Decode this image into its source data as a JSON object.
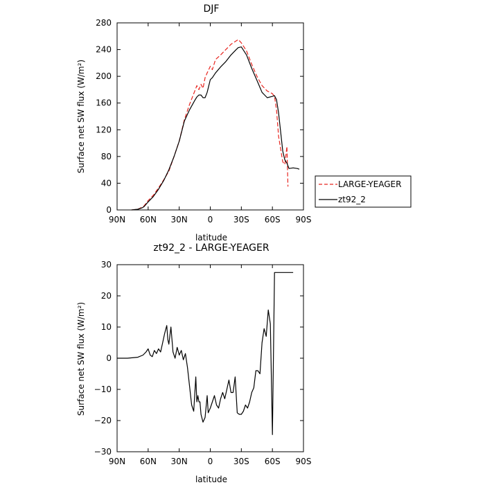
{
  "colors": {
    "large_yeager": "#e8241e",
    "zt92_2": "#000000",
    "axes": "#000000",
    "background": "#ffffff"
  },
  "chart_data": [
    {
      "type": "line",
      "title": "DJF",
      "xlabel": "latitude",
      "ylabel": "Surface net SW flux (W/m²)",
      "xlim": [
        90,
        -90
      ],
      "ylim": [
        0,
        280
      ],
      "xticks": [
        90,
        60,
        30,
        0,
        -30,
        -60,
        -90
      ],
      "xtick_labels": [
        "90N",
        "60N",
        "30N",
        "0",
        "30S",
        "60S",
        "90S"
      ],
      "yticks": [
        0,
        40,
        80,
        120,
        160,
        200,
        240,
        280
      ],
      "ytick_labels": [
        "0",
        "40",
        "80",
        "120",
        "160",
        "200",
        "240",
        "280"
      ],
      "legend_position": "right",
      "grid": false,
      "series": [
        {
          "name": "LARGE-YEAGER",
          "color": "#e8241e",
          "dash": "dashed",
          "x": [
            76,
            70,
            66,
            64,
            60,
            55,
            50,
            45,
            40,
            35,
            30,
            25,
            20,
            15,
            13,
            11,
            9,
            7,
            5,
            3,
            0,
            -2,
            -5,
            -10,
            -15,
            -20,
            -25,
            -27,
            -30,
            -35,
            -40,
            -45,
            -50,
            -55,
            -60,
            -62,
            -64,
            -66,
            -70,
            -72,
            -74,
            -75
          ],
          "y": [
            0,
            1,
            4,
            6,
            14,
            22,
            33,
            45,
            58,
            80,
            103,
            135,
            158,
            178,
            186,
            180,
            188,
            182,
            198,
            205,
            215,
            210,
            225,
            232,
            240,
            248,
            253,
            255,
            250,
            238,
            218,
            200,
            186,
            178,
            174,
            170,
            150,
            110,
            72,
            68,
            95,
            35
          ]
        },
        {
          "name": "zt92_2",
          "color": "#000000",
          "dash": "solid",
          "x": [
            76,
            70,
            66,
            64,
            60,
            55,
            50,
            45,
            40,
            35,
            30,
            25,
            20,
            15,
            13,
            11,
            9,
            7,
            5,
            3,
            0,
            -2,
            -5,
            -10,
            -15,
            -20,
            -25,
            -27,
            -30,
            -35,
            -40,
            -45,
            -50,
            -55,
            -60,
            -62,
            -64,
            -66,
            -70,
            -72,
            -74,
            -76,
            -80,
            -84,
            -86
          ],
          "y": [
            0,
            1,
            3,
            5,
            12,
            20,
            31,
            44,
            60,
            80,
            103,
            133,
            150,
            164,
            169,
            172,
            172,
            168,
            168,
            176,
            195,
            198,
            205,
            214,
            222,
            232,
            240,
            243,
            244,
            232,
            212,
            194,
            176,
            168,
            170,
            171,
            165,
            145,
            88,
            75,
            70,
            62,
            63,
            62,
            61
          ]
        }
      ]
    },
    {
      "type": "line",
      "title": "zt92_2 - LARGE-YEAGER",
      "xlabel": "latitude",
      "ylabel": "Surface net SW flux (W/m²)",
      "xlim": [
        90,
        -90
      ],
      "ylim": [
        -30,
        30
      ],
      "xticks": [
        90,
        60,
        30,
        0,
        -30,
        -60,
        -90
      ],
      "xtick_labels": [
        "90N",
        "60N",
        "30N",
        "0",
        "30S",
        "60S",
        "90S"
      ],
      "yticks": [
        -30,
        -20,
        -10,
        0,
        10,
        20,
        30
      ],
      "ytick_labels": [
        "−30",
        "−20",
        "−10",
        "0",
        "10",
        "20",
        "30"
      ],
      "grid": false,
      "series": [
        {
          "color": "#000000",
          "dash": "solid",
          "x": [
            90,
            80,
            70,
            65,
            62,
            60,
            58,
            56,
            54,
            52,
            50,
            48,
            46,
            44,
            42,
            41,
            40,
            38,
            36,
            34,
            32,
            30,
            28,
            26,
            24,
            22,
            20,
            18,
            16,
            14,
            13,
            12,
            11,
            10,
            9,
            7,
            5,
            3,
            2,
            0,
            -2,
            -4,
            -6,
            -8,
            -10,
            -12,
            -14,
            -16,
            -18,
            -20,
            -22,
            -24,
            -26,
            -28,
            -30,
            -32,
            -34,
            -36,
            -38,
            -40,
            -42,
            -44,
            -46,
            -48,
            -50,
            -52,
            -54,
            -56,
            -58,
            -60,
            -62,
            -64,
            -66,
            -68,
            -70,
            -72,
            -74,
            -75,
            -77,
            -79,
            -80
          ],
          "y": [
            0,
            0,
            0.3,
            1,
            2,
            3,
            1,
            0.5,
            2.5,
            1.5,
            3,
            2,
            5,
            8,
            10.5,
            6,
            4.5,
            10,
            2,
            0,
            3.5,
            1,
            2.5,
            -0.5,
            1.5,
            -3,
            -9,
            -15,
            -17,
            -6,
            -14,
            -12,
            -14,
            -14,
            -18,
            -20.5,
            -19,
            -12,
            -17.5,
            -16,
            -14,
            -12,
            -15,
            -16,
            -13,
            -11,
            -13,
            -10,
            -7,
            -11,
            -11,
            -6,
            -17.5,
            -18,
            -18,
            -17,
            -15,
            -16,
            -14,
            -11,
            -9.5,
            -4,
            -4,
            -5,
            5,
            9.5,
            7,
            15.5,
            11,
            -24.5,
            27.5,
            27.5,
            27.5,
            27.5,
            27.5,
            27.5,
            27.5,
            27.5,
            27.5,
            27.5,
            27.5
          ]
        }
      ]
    }
  ]
}
